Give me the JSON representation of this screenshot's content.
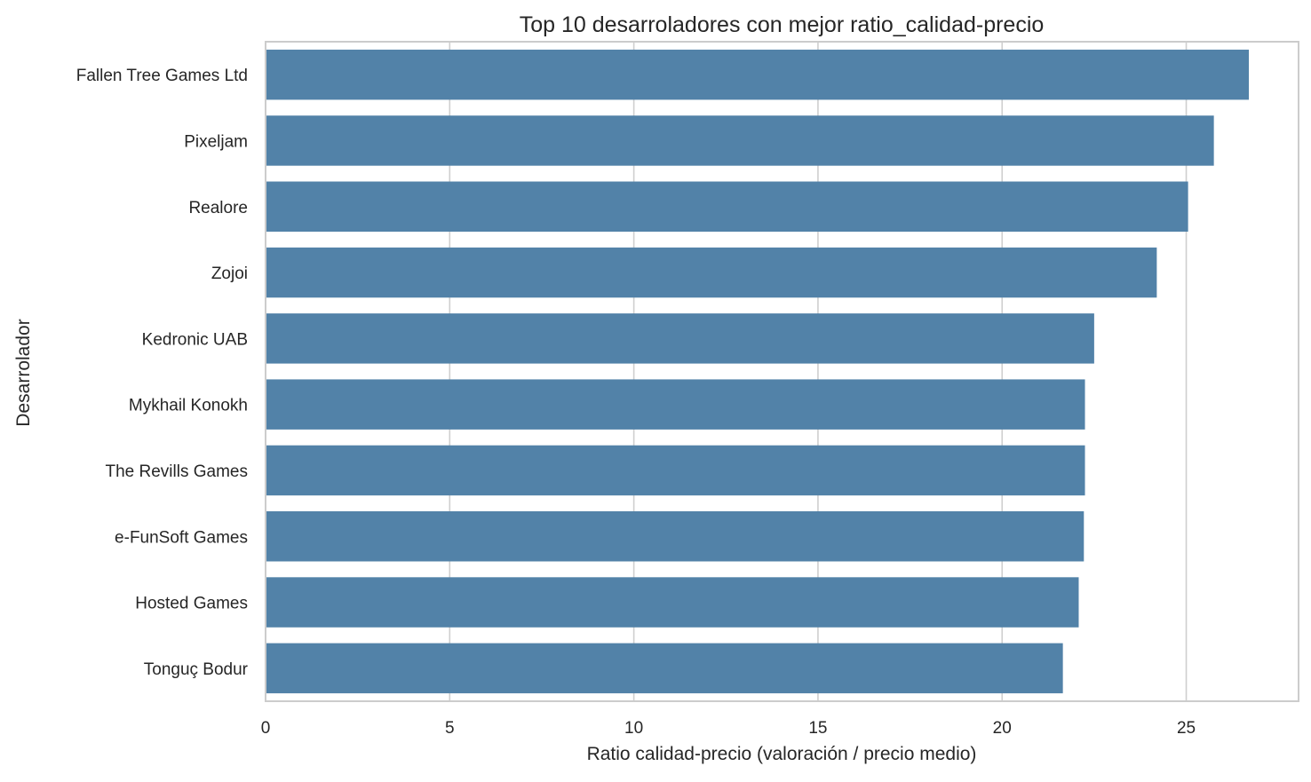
{
  "chart_data": {
    "type": "bar",
    "orientation": "horizontal",
    "title": "Top 10 desarroladores con mejor ratio_calidad-precio",
    "xlabel": "Ratio calidad-precio (valoración / precio medio)",
    "ylabel": "Desarrolador",
    "categories": [
      "Fallen Tree Games Ltd",
      "Pixeljam",
      "Realore",
      "Zojoi",
      "Kedronic UAB",
      "Mykhail Konokh",
      "The Revills Games",
      "e-FunSoft Games",
      "Hosted Games",
      "Tonguç Bodur"
    ],
    "values": [
      26.7,
      25.75,
      25.05,
      24.2,
      22.5,
      22.25,
      22.25,
      22.22,
      22.08,
      21.65
    ],
    "xlim": [
      0,
      28.05
    ],
    "xticks": [
      0,
      5,
      10,
      15,
      20,
      25
    ],
    "grid": true,
    "legend": "none",
    "colors": {
      "bar": "#5282a8",
      "grid": "#cfcfcf",
      "frame": "#cccccc",
      "text": "#262626"
    }
  }
}
